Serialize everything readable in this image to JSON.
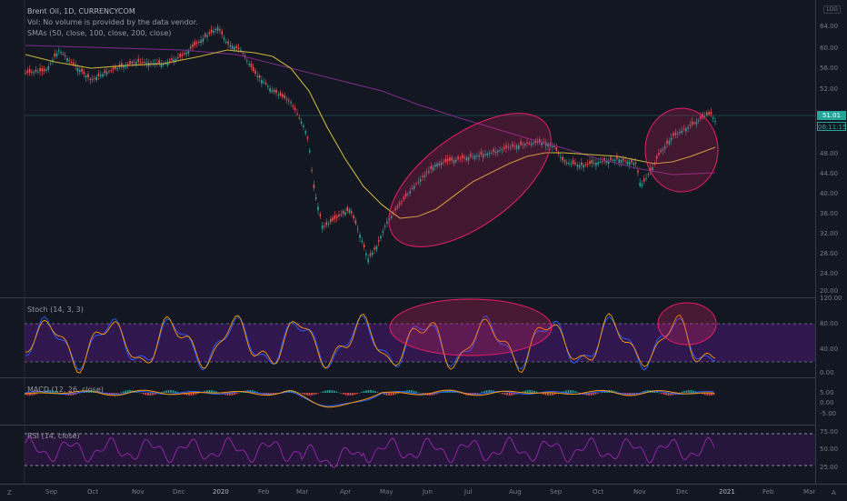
{
  "header": {
    "symbol": "Brent Oil, 1D, CURRENCYCOM",
    "vol_note": "Vol: No volume is provided by the data vendor.",
    "smas": "SMAs (50, close, 100, close, 200, close)",
    "scale_button": "LOG"
  },
  "indicators": {
    "stoch": "Stoch (14, 3, 3)",
    "macd": "MACD (12, 26, close)",
    "rsi": "RSI (14, close)"
  },
  "price_axis": [
    "64.00",
    "60.00",
    "56.00",
    "52.00",
    "48.00",
    "44.00",
    "40.00",
    "36.00",
    "32.00",
    "28.00",
    "24.00",
    "20.00"
  ],
  "stoch_axis": [
    "120.00",
    "80.00",
    "40.00",
    "0.00"
  ],
  "macd_axis": [
    "5.00",
    "0.00",
    "-5.00"
  ],
  "rsi_axis": [
    "75.00",
    "50.00",
    "25.00"
  ],
  "current_price": "51.01",
  "countdown": "06:11:15",
  "time_axis": [
    "Sep",
    "Oct",
    "Nov",
    "Dec",
    "2020",
    "Feb",
    "Mar",
    "Apr",
    "May",
    "Jun",
    "Jul",
    "Aug",
    "Sep",
    "Oct",
    "Nov",
    "Dec",
    "2021",
    "Feb",
    "Mar"
  ],
  "corner": {
    "left": "Z",
    "right": "A"
  },
  "colors": {
    "background": "#131722",
    "up": "#26a69a",
    "down": "#ef5350",
    "sma50": "#c8b23a",
    "sma200": "#8e3a9c",
    "highlight": "#e91e63",
    "band": "#4a1e7a"
  }
}
